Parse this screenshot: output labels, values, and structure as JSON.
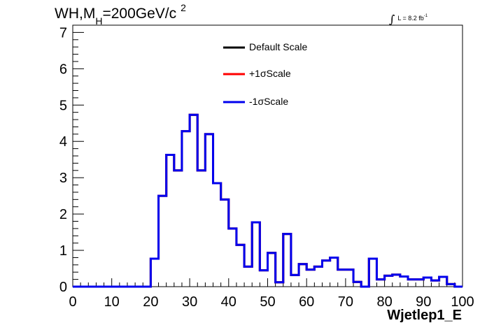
{
  "chart_data": {
    "type": "line",
    "title": {
      "main": "WH,M",
      "subscript": "H",
      "rest": "=200GeV/c",
      "superscript": "2"
    },
    "luminosity": {
      "integral": "∫",
      "text": "L = 8.2 fb",
      "superscript": "-1"
    },
    "xlabel": "Wjetlep1_E",
    "ylabel": "",
    "xlim": [
      0,
      100
    ],
    "ylim": [
      0,
      7.2
    ],
    "xticks": [
      "0",
      "10",
      "20",
      "30",
      "40",
      "50",
      "60",
      "70",
      "80",
      "90",
      "100"
    ],
    "yticks": [
      "0",
      "1",
      "2",
      "3",
      "4",
      "5",
      "6",
      "7"
    ],
    "legend_position": "top-center",
    "bin_width": 2,
    "bin_edges_start": 0,
    "series": [
      {
        "name": "Default Scale",
        "color": "#000000",
        "values": [
          0,
          0,
          0,
          0,
          0,
          0,
          0,
          0,
          0,
          0,
          0.77,
          2.5,
          3.63,
          3.2,
          4.28,
          4.73,
          3.2,
          4.2,
          2.85,
          2.4,
          1.6,
          1.15,
          0.55,
          1.77,
          0.45,
          0.93,
          0.12,
          1.45,
          0.32,
          0.62,
          0.47,
          0.55,
          0.72,
          0.8,
          0.47,
          0.47,
          0.13,
          0,
          0.77,
          0.2,
          0.3,
          0.33,
          0.28,
          0.2,
          0.2,
          0.25,
          0.17,
          0.27,
          0.07,
          0
        ]
      },
      {
        "name": "+1σScale",
        "color": "#ff0000",
        "values": [
          0,
          0,
          0,
          0,
          0,
          0,
          0,
          0,
          0,
          0,
          0.77,
          2.5,
          3.63,
          3.2,
          4.28,
          4.73,
          3.2,
          4.2,
          2.85,
          2.4,
          1.6,
          1.15,
          0.55,
          1.77,
          0.45,
          0.93,
          0.12,
          1.45,
          0.32,
          0.62,
          0.47,
          0.55,
          0.72,
          0.8,
          0.47,
          0.47,
          0.13,
          0,
          0.77,
          0.2,
          0.3,
          0.33,
          0.28,
          0.2,
          0.2,
          0.25,
          0.17,
          0.27,
          0.07,
          0
        ]
      },
      {
        "name": "-1σScale",
        "color": "#0000ee",
        "values": [
          0,
          0,
          0,
          0,
          0,
          0,
          0,
          0,
          0,
          0,
          0.77,
          2.5,
          3.63,
          3.2,
          4.28,
          4.73,
          3.2,
          4.2,
          2.85,
          2.4,
          1.6,
          1.15,
          0.55,
          1.77,
          0.45,
          0.93,
          0.12,
          1.45,
          0.32,
          0.62,
          0.47,
          0.55,
          0.72,
          0.8,
          0.47,
          0.47,
          0.13,
          0,
          0.77,
          0.2,
          0.3,
          0.33,
          0.28,
          0.2,
          0.2,
          0.25,
          0.17,
          0.27,
          0.07,
          0
        ]
      }
    ]
  }
}
